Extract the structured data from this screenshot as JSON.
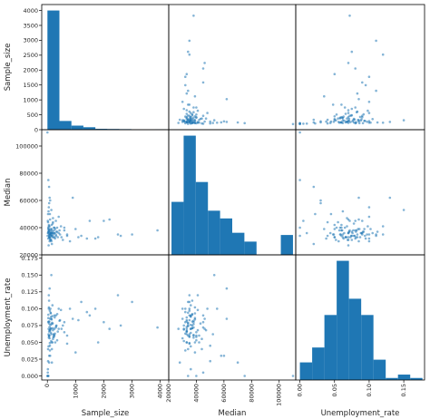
{
  "chart_data": {
    "type": "scatter_matrix",
    "variables": [
      "Sample_size",
      "Median",
      "Unemployment_rate"
    ],
    "colors": {
      "marks": "#1f77b4",
      "frame": "#000000",
      "background": "#ffffff"
    },
    "grid": false,
    "axes": {
      "Sample_size": {
        "lim": [
          -200,
          4300
        ],
        "ticks": [
          0,
          1000,
          2000,
          3000,
          4000
        ],
        "tick_labels": [
          "0",
          "1000",
          "2000",
          "3000",
          "4000"
        ]
      },
      "Median": {
        "lim": [
          20000,
          112000
        ],
        "ticks": [
          20000,
          40000,
          60000,
          80000,
          100000
        ],
        "tick_labels": [
          "20000",
          "40000",
          "60000",
          "80000",
          "100000"
        ]
      },
      "Unemployment_rate": {
        "lim": [
          -0.006,
          0.18
        ],
        "ticks": [
          0.0,
          0.05,
          0.1,
          0.15
        ],
        "tick_labels": [
          "0.00",
          "0.05",
          "0.10",
          "0.15"
        ]
      }
    },
    "diag_y_ticks": {
      "Sample_size": {
        "lim": [
          0,
          4200
        ],
        "ticks": [
          0,
          500,
          1000,
          1500,
          2000,
          2500,
          3000,
          3500,
          4000
        ],
        "tick_labels": [
          "0",
          "500",
          "1000",
          "1500",
          "2000",
          "2500",
          "3000",
          "3500",
          "4000"
        ]
      },
      "Median": {
        "ticks": [
          20000,
          40000,
          60000,
          80000,
          100000
        ],
        "tick_labels": [
          "20000",
          "40000",
          "60000",
          "80000",
          "100000"
        ]
      },
      "Unemployment_rate": {
        "ticks": [
          0.0,
          0.025,
          0.05,
          0.075,
          0.1,
          0.125,
          0.15,
          0.175
        ],
        "tick_labels": [
          "0.000",
          "0.025",
          "0.050",
          "0.075",
          "0.100",
          "0.125",
          "0.150",
          "0.175"
        ]
      }
    },
    "histograms": {
      "Sample_size": {
        "edges": [
          2,
          426.8,
          851.6,
          1276.4,
          1701.2,
          2126,
          2550.8,
          2975.6,
          3400.4,
          3825.2,
          4212
        ],
        "counts": [
          4100,
          300,
          140,
          85,
          30,
          25,
          20,
          2,
          2,
          15
        ]
      },
      "Median": {
        "edges": [
          22000,
          30800,
          39600,
          48400,
          57200,
          66000,
          74800,
          83600,
          92400,
          101200,
          110000
        ],
        "counts": [
          48,
          108,
          66,
          40,
          33,
          20,
          12,
          0,
          0,
          18
        ]
      },
      "Unemployment_rate": {
        "edges": [
          0.0,
          0.0177,
          0.0354,
          0.0531,
          0.0708,
          0.0885,
          0.1062,
          0.1239,
          0.1416,
          0.1593,
          0.177
        ],
        "counts": [
          0.026,
          0.048,
          0.096,
          0.176,
          0.12,
          0.096,
          0.03,
          0.003,
          0.008,
          0.003
        ]
      }
    },
    "points": [
      [
        2,
        110000,
        0.0
      ],
      [
        35,
        75000,
        0.0
      ],
      [
        1500,
        45000,
        0.09
      ],
      [
        900,
        62000,
        0.085
      ],
      [
        250,
        40000,
        0.06
      ],
      [
        300,
        35000,
        0.09
      ],
      [
        180,
        33000,
        0.05
      ],
      [
        400,
        36000,
        0.07
      ],
      [
        600,
        38000,
        0.08
      ],
      [
        800,
        30000,
        0.1
      ],
      [
        1200,
        34000,
        0.11
      ],
      [
        1800,
        33000,
        0.05
      ],
      [
        2200,
        46000,
        0.07
      ],
      [
        2500,
        35000,
        0.12
      ],
      [
        100,
        60000,
        0.03
      ],
      [
        50,
        55000,
        0.1
      ],
      [
        150,
        42000,
        0.05
      ],
      [
        70,
        38000,
        0.06
      ],
      [
        2000,
        45000,
        0.08
      ],
      [
        3000,
        35000,
        0.11
      ],
      [
        120,
        31000,
        0.07
      ],
      [
        90,
        50000,
        0.045
      ],
      [
        700,
        34000,
        0.06
      ],
      [
        250,
        36000,
        0.09
      ],
      [
        400,
        48000,
        0.1
      ],
      [
        600,
        40000,
        0.065
      ],
      [
        140,
        53000,
        0.15
      ],
      [
        160,
        28000,
        0.02
      ],
      [
        80,
        62000,
        0.13
      ],
      [
        320,
        37000,
        0.075
      ],
      [
        1000,
        39000,
        0.035
      ],
      [
        200,
        44000,
        0.055
      ],
      [
        3900,
        38000,
        0.072
      ],
      [
        60,
        70000,
        0.02
      ],
      [
        130,
        36000,
        0.088
      ],
      [
        220,
        33000,
        0.062
      ],
      [
        450,
        35000,
        0.083
      ],
      [
        1400,
        32000,
        0.095
      ],
      [
        500,
        33000,
        0.07
      ],
      [
        50,
        38000,
        0.057
      ],
      [
        30,
        32000,
        0.08
      ],
      [
        75,
        41000,
        0.068
      ],
      [
        110,
        35000,
        0.1
      ],
      [
        95,
        46000,
        0.085
      ],
      [
        280,
        39000,
        0.05
      ],
      [
        40,
        52000,
        0.062
      ],
      [
        160,
        34000,
        0.04
      ],
      [
        20,
        36000,
        0.01
      ],
      [
        350,
        37000,
        0.092
      ],
      [
        1700,
        32000,
        0.1
      ],
      [
        550,
        31000,
        0.075
      ],
      [
        65,
        58000,
        0.03
      ],
      [
        190,
        43000,
        0.078
      ],
      [
        230,
        40000,
        0.058
      ],
      [
        60,
        37000,
        0.112
      ],
      [
        45,
        27000,
        0.07
      ],
      [
        85,
        35000,
        0.049
      ],
      [
        370,
        33000,
        0.066
      ],
      [
        120,
        39000,
        0.093
      ],
      [
        300,
        45000,
        0.072
      ],
      [
        140,
        30000,
        0.085
      ],
      [
        700,
        35000,
        0.048
      ],
      [
        25,
        50000,
        0.022
      ],
      [
        55,
        42000,
        0.06
      ],
      [
        2600,
        34000,
        0.075
      ],
      [
        180,
        36000,
        0.105
      ],
      [
        90,
        32000,
        0.038
      ],
      [
        430,
        38000,
        0.082
      ],
      [
        10,
        34000,
        0.0
      ],
      [
        30,
        40000,
        0.0
      ],
      [
        15,
        45000,
        0.005
      ],
      [
        480,
        41000,
        0.098
      ],
      [
        200,
        47000,
        0.068
      ],
      [
        75,
        33000,
        0.073
      ],
      [
        125,
        36000,
        0.064
      ],
      [
        165,
        34000,
        0.079
      ],
      [
        35,
        37000,
        0.091
      ],
      [
        210,
        35000,
        0.058
      ],
      [
        260,
        33000,
        0.087
      ],
      [
        95,
        31000,
        0.069
      ],
      [
        55,
        39000,
        0.102
      ],
      [
        345,
        40000,
        0.053
      ],
      [
        145,
        38000,
        0.077
      ],
      [
        65,
        35000,
        0.059
      ],
      [
        1100,
        33000,
        0.083
      ],
      [
        40,
        36000,
        0.044
      ],
      [
        115,
        34000,
        0.094
      ],
      [
        190,
        37000,
        0.071
      ],
      [
        270,
        32000,
        0.063
      ],
      [
        80,
        30000,
        0.056
      ],
      [
        50,
        41000,
        0.12
      ],
      [
        25,
        44000,
        0.04
      ],
      [
        105,
        36000,
        0.076
      ],
      [
        150,
        39000,
        0.084
      ],
      [
        65,
        33000,
        0.066
      ],
      [
        85,
        35000,
        0.097
      ],
      [
        230,
        38000,
        0.061
      ],
      [
        310,
        34000,
        0.074
      ],
      [
        45,
        37000,
        0.081
      ],
      [
        135,
        31000,
        0.052
      ],
      [
        175,
        36000,
        0.089
      ],
      [
        60,
        34000,
        0.078
      ],
      [
        95,
        33000,
        0.067
      ],
      [
        250,
        36000,
        0.07
      ],
      [
        35,
        39000,
        0.086
      ],
      [
        140,
        35000,
        0.062
      ],
      [
        120,
        37000,
        0.071
      ],
      [
        70,
        33000,
        0.081
      ]
    ]
  }
}
